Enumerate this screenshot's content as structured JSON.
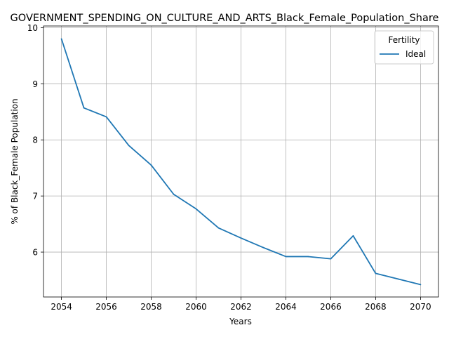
{
  "chart_data": {
    "type": "line",
    "title": "GOVERNMENT_SPENDING_ON_CULTURE_AND_ARTS_Black_Female_Population_Share",
    "xlabel": "Years",
    "ylabel": "% of Black_Female Population",
    "x": [
      2054,
      2055,
      2056,
      2057,
      2058,
      2059,
      2060,
      2061,
      2062,
      2063,
      2064,
      2065,
      2066,
      2067,
      2068,
      2069,
      2070
    ],
    "xticks": [
      "2054",
      "2056",
      "2058",
      "2060",
      "2062",
      "2064",
      "2066",
      "2068",
      "2070"
    ],
    "yticks": [
      "6",
      "7",
      "8",
      "9",
      "10"
    ],
    "xlim": [
      2053.2,
      2070.8
    ],
    "ylim": [
      5.2,
      10.03
    ],
    "grid": true,
    "legend": {
      "title": "Fertility",
      "placement": "top-right"
    },
    "series": [
      {
        "name": "Ideal",
        "color": "#1f77b4",
        "values": [
          9.8,
          8.57,
          8.41,
          7.9,
          7.55,
          7.03,
          6.77,
          6.43,
          6.25,
          6.08,
          5.92,
          5.92,
          5.88,
          6.29,
          5.62,
          5.52,
          5.42
        ]
      }
    ]
  }
}
